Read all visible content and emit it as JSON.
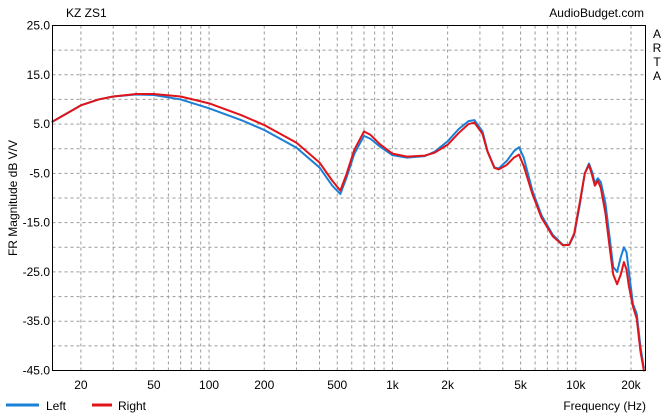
{
  "chart_data": {
    "type": "line",
    "title": "KZ ZS1",
    "watermark": "AudioBudget.com",
    "side_label": "ARTA",
    "xlabel": "Frequency (Hz)",
    "ylabel": "FR Magnitude dB V/V",
    "x_scale": "log",
    "xlim": [
      14,
      24000
    ],
    "ylim": [
      -45,
      25
    ],
    "y_ticks": [
      25.0,
      15.0,
      5.0,
      -5.0,
      -15.0,
      -25.0,
      -35.0,
      -45.0
    ],
    "y_tick_labels": [
      "25.0",
      "15.0",
      "5.0",
      "-5.0",
      "-15.0",
      "-25.0",
      "-35.0",
      "-45.0"
    ],
    "x_ticks": [
      20,
      50,
      100,
      200,
      500,
      1000,
      2000,
      5000,
      10000,
      20000
    ],
    "x_tick_labels": [
      "20",
      "50",
      "100",
      "200",
      "500",
      "1k",
      "2k",
      "5k",
      "10k",
      "20k"
    ],
    "grid": true,
    "legend_position": "bottom-left",
    "series": [
      {
        "name": "Left",
        "color": "#1a7fd6",
        "points": [
          [
            14,
            5.5
          ],
          [
            20,
            8.8
          ],
          [
            25,
            10.0
          ],
          [
            30,
            10.6
          ],
          [
            40,
            11.0
          ],
          [
            50,
            10.9
          ],
          [
            70,
            10.0
          ],
          [
            100,
            8.2
          ],
          [
            150,
            5.8
          ],
          [
            200,
            3.8
          ],
          [
            300,
            0.2
          ],
          [
            400,
            -3.8
          ],
          [
            470,
            -7.5
          ],
          [
            520,
            -9.2
          ],
          [
            560,
            -6.0
          ],
          [
            620,
            -1.0
          ],
          [
            700,
            2.6
          ],
          [
            760,
            2.0
          ],
          [
            850,
            0.5
          ],
          [
            1000,
            -1.3
          ],
          [
            1200,
            -1.8
          ],
          [
            1500,
            -1.5
          ],
          [
            1700,
            -0.6
          ],
          [
            2000,
            1.5
          ],
          [
            2300,
            4.0
          ],
          [
            2600,
            5.6
          ],
          [
            2800,
            5.8
          ],
          [
            3100,
            3.5
          ],
          [
            3300,
            -0.5
          ],
          [
            3600,
            -3.8
          ],
          [
            3800,
            -4.0
          ],
          [
            4200,
            -2.5
          ],
          [
            4600,
            -0.5
          ],
          [
            4900,
            0.3
          ],
          [
            5200,
            -1.8
          ],
          [
            5800,
            -8.5
          ],
          [
            6500,
            -13.5
          ],
          [
            7500,
            -17.5
          ],
          [
            8500,
            -19.5
          ],
          [
            9200,
            -19.5
          ],
          [
            9800,
            -17.5
          ],
          [
            10500,
            -11.5
          ],
          [
            11200,
            -5.0
          ],
          [
            11800,
            -3.0
          ],
          [
            12300,
            -4.8
          ],
          [
            12700,
            -7.0
          ],
          [
            13200,
            -6.0
          ],
          [
            13700,
            -6.8
          ],
          [
            14500,
            -11.0
          ],
          [
            15300,
            -18.0
          ],
          [
            16000,
            -24.0
          ],
          [
            16800,
            -25.0
          ],
          [
            17600,
            -22.0
          ],
          [
            18300,
            -20.0
          ],
          [
            18900,
            -21.0
          ],
          [
            19500,
            -25.0
          ],
          [
            20500,
            -31.5
          ],
          [
            21500,
            -33.5
          ],
          [
            22500,
            -40.0
          ],
          [
            23500,
            -44.5
          ]
        ]
      },
      {
        "name": "Right",
        "color": "#e0141a",
        "points": [
          [
            14,
            5.5
          ],
          [
            20,
            8.8
          ],
          [
            25,
            10.0
          ],
          [
            30,
            10.6
          ],
          [
            40,
            11.1
          ],
          [
            50,
            11.1
          ],
          [
            70,
            10.6
          ],
          [
            100,
            9.2
          ],
          [
            150,
            6.8
          ],
          [
            200,
            4.8
          ],
          [
            300,
            1.2
          ],
          [
            400,
            -2.8
          ],
          [
            470,
            -6.5
          ],
          [
            520,
            -8.5
          ],
          [
            560,
            -5.3
          ],
          [
            620,
            -0.2
          ],
          [
            700,
            3.5
          ],
          [
            760,
            2.8
          ],
          [
            850,
            1.0
          ],
          [
            1000,
            -1.0
          ],
          [
            1200,
            -1.6
          ],
          [
            1500,
            -1.4
          ],
          [
            1700,
            -0.8
          ],
          [
            2000,
            0.8
          ],
          [
            2300,
            3.2
          ],
          [
            2600,
            5.0
          ],
          [
            2800,
            5.3
          ],
          [
            3100,
            3.0
          ],
          [
            3300,
            -0.6
          ],
          [
            3600,
            -3.9
          ],
          [
            3800,
            -4.2
          ],
          [
            4200,
            -3.3
          ],
          [
            4600,
            -1.8
          ],
          [
            4900,
            -1.2
          ],
          [
            5200,
            -3.5
          ],
          [
            5800,
            -9.2
          ],
          [
            6500,
            -14.0
          ],
          [
            7500,
            -17.8
          ],
          [
            8500,
            -19.6
          ],
          [
            9200,
            -19.5
          ],
          [
            9800,
            -17.2
          ],
          [
            10500,
            -11.0
          ],
          [
            11200,
            -5.0
          ],
          [
            11800,
            -3.3
          ],
          [
            12300,
            -5.5
          ],
          [
            12700,
            -7.5
          ],
          [
            13200,
            -6.5
          ],
          [
            13700,
            -8.0
          ],
          [
            14500,
            -13.0
          ],
          [
            15300,
            -20.0
          ],
          [
            16000,
            -25.5
          ],
          [
            16800,
            -27.5
          ],
          [
            17600,
            -25.5
          ],
          [
            18300,
            -23.0
          ],
          [
            18900,
            -24.5
          ],
          [
            19500,
            -28.0
          ],
          [
            20500,
            -32.0
          ],
          [
            21500,
            -34.5
          ],
          [
            22500,
            -41.0
          ],
          [
            23500,
            -45.0
          ]
        ]
      }
    ]
  }
}
